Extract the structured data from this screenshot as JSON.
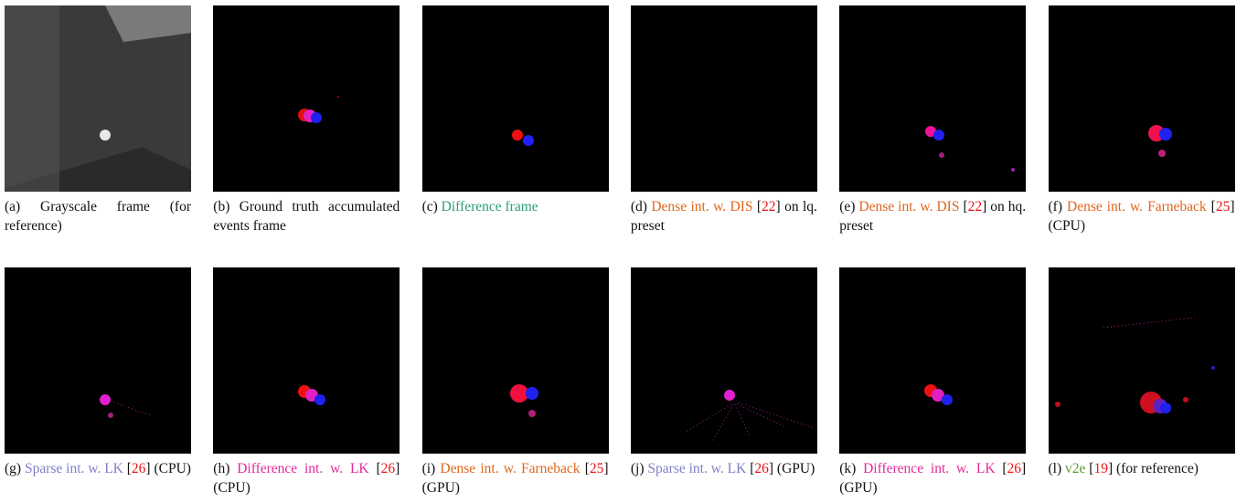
{
  "panels": [
    {
      "caption": [
        {
          "text": "(a) Grayscale frame (for reference)"
        }
      ]
    },
    {
      "caption": [
        {
          "text": "(b) Ground truth accumulated events frame"
        }
      ]
    },
    {
      "caption": [
        {
          "text": "(c) "
        },
        {
          "text": "Difference frame",
          "color": "#2e9e72"
        }
      ]
    },
    {
      "caption": [
        {
          "text": "(d) "
        },
        {
          "text": "Dense int. w. DIS",
          "color": "#e0661c"
        },
        {
          "text": " ["
        },
        {
          "text": "22",
          "color": "#ee1111"
        },
        {
          "text": "] on lq. preset"
        }
      ]
    },
    {
      "caption": [
        {
          "text": "(e) "
        },
        {
          "text": "Dense int. w. DIS",
          "color": "#e0661c"
        },
        {
          "text": " ["
        },
        {
          "text": "22",
          "color": "#ee1111"
        },
        {
          "text": "] on hq. preset"
        }
      ]
    },
    {
      "caption": [
        {
          "text": "(f) "
        },
        {
          "text": "Dense int. w. Farneback",
          "color": "#e0661c"
        },
        {
          "text": " ["
        },
        {
          "text": "25",
          "color": "#ee1111"
        },
        {
          "text": "] (CPU)"
        }
      ]
    },
    {
      "caption": [
        {
          "text": "(g) "
        },
        {
          "text": "Sparse int. w. LK",
          "color": "#7f7fc8"
        },
        {
          "text": " ["
        },
        {
          "text": "26",
          "color": "#ee1111"
        },
        {
          "text": "] (CPU)"
        }
      ]
    },
    {
      "caption": [
        {
          "text": "(h) "
        },
        {
          "text": "Difference int. w. LK",
          "color": "#e02a9a"
        },
        {
          "text": " ["
        },
        {
          "text": "26",
          "color": "#ee1111"
        },
        {
          "text": "] (CPU)"
        }
      ]
    },
    {
      "caption": [
        {
          "text": "(i) "
        },
        {
          "text": "Dense int. w. Farneback",
          "color": "#e0661c"
        },
        {
          "text": " ["
        },
        {
          "text": "25",
          "color": "#ee1111"
        },
        {
          "text": "] (GPU)"
        }
      ]
    },
    {
      "caption": [
        {
          "text": "(j) "
        },
        {
          "text": "Sparse int. w. LK",
          "color": "#7f7fc8"
        },
        {
          "text": " ["
        },
        {
          "text": "26",
          "color": "#ee1111"
        },
        {
          "text": "] (GPU)"
        }
      ]
    },
    {
      "caption": [
        {
          "text": "(k) "
        },
        {
          "text": "Difference int. w. LK",
          "color": "#e02a9a"
        },
        {
          "text": " ["
        },
        {
          "text": "26",
          "color": "#ee1111"
        },
        {
          "text": "] (GPU)"
        }
      ]
    },
    {
      "caption": [
        {
          "text": "(l) "
        },
        {
          "text": "v2e",
          "color": "#5aa02c"
        },
        {
          "text": " ["
        },
        {
          "text": "19",
          "color": "#ee1111"
        },
        {
          "text": "] (for reference)"
        }
      ]
    }
  ]
}
